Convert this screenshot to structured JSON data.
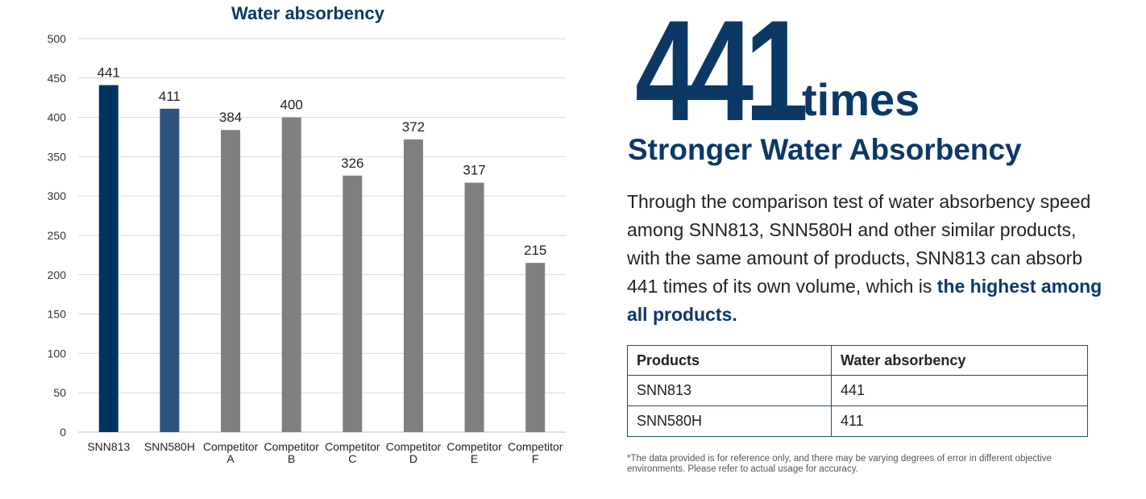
{
  "chart_data": {
    "type": "bar",
    "title": "Water absorbency",
    "categories": [
      "SNN813",
      "SNN580H",
      "Competitor A",
      "Competitor B",
      "Competitor C",
      "Competitor D",
      "Competitor E",
      "Competitor F"
    ],
    "category_lines": [
      [
        "SNN813"
      ],
      [
        "SNN580H"
      ],
      [
        "Competitor",
        "A"
      ],
      [
        "Competitor",
        "B"
      ],
      [
        "Competitor",
        "C"
      ],
      [
        "Competitor",
        "D"
      ],
      [
        "Competitor",
        "E"
      ],
      [
        "Competitor",
        "F"
      ]
    ],
    "values": [
      441,
      411,
      384,
      400,
      326,
      372,
      317,
      215
    ],
    "data_labels": [
      "441",
      "411",
      "384",
      "400",
      "326",
      "372",
      "317",
      "215"
    ],
    "bar_colors": [
      "#003361",
      "#2b5580",
      "#7f7f7f",
      "#7f7f7f",
      "#7f7f7f",
      "#7f7f7f",
      "#7f7f7f",
      "#7f7f7f"
    ],
    "ylim": [
      0,
      500
    ],
    "yticks": [
      0,
      50,
      100,
      150,
      200,
      250,
      300,
      350,
      400,
      450,
      500
    ],
    "grid": true,
    "legend": "none"
  },
  "hero": {
    "number": "441",
    "unit": "times"
  },
  "headline": "Stronger Water Absorbency",
  "description": {
    "text": "Through the comparison test of water absorbency speed among SNN813, SNN580H and other similar products, with the same amount of products, SNN813 can absorb 441 times of its own volume, which is ",
    "emphasis": "the highest among all products."
  },
  "table": {
    "headers": [
      "Products",
      "Water absorbency"
    ],
    "rows": [
      [
        "SNN813",
        "441"
      ],
      [
        "SNN580H",
        "411"
      ]
    ]
  },
  "footnote": "*The data provided is for reference only, and there may be varying degrees of error in different objective environments. Please refer to actual usage for accuracy.",
  "colors": {
    "brand_navy": "#0c3866",
    "bar_primary": "#003361",
    "bar_secondary": "#2b5580",
    "bar_competitor": "#7f7f7f",
    "gridline": "#d9d9d9"
  }
}
